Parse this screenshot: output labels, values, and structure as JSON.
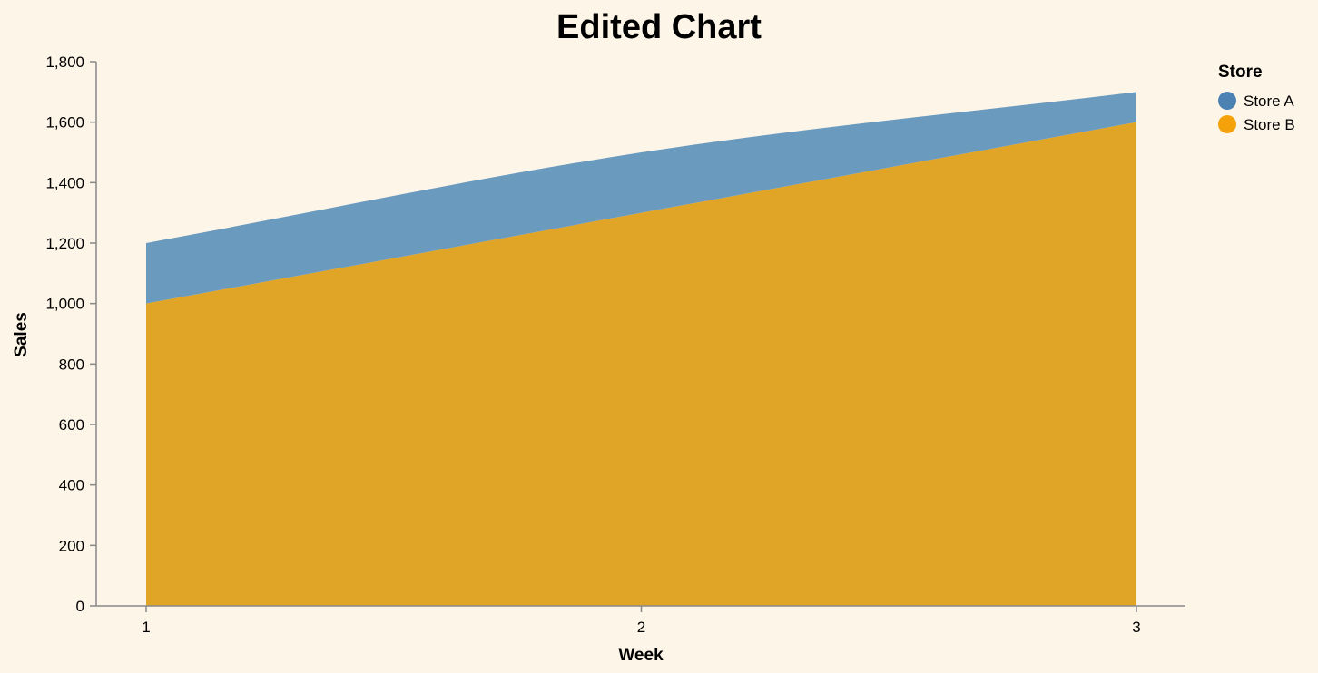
{
  "chart_data": {
    "type": "area",
    "stacked": true,
    "interpolation": "monotone",
    "title": "Edited Chart",
    "xlabel": "Week",
    "ylabel": "Sales",
    "x": [
      1,
      2,
      3
    ],
    "x_ticks": [
      "1",
      "2",
      "3"
    ],
    "ylim": [
      0,
      1800
    ],
    "y_ticks": [
      "0",
      "200",
      "400",
      "600",
      "800",
      "1,000",
      "1,200",
      "1,400",
      "1,600",
      "1,800"
    ],
    "y_tick_values": [
      0,
      200,
      400,
      600,
      800,
      1000,
      1200,
      1400,
      1600,
      1800
    ],
    "grid": false,
    "legend": {
      "title": "Store",
      "placement": "top-right"
    },
    "series": [
      {
        "name": "Store A",
        "values": [
          200,
          200,
          100
        ],
        "color": "#4c82b3",
        "fill": "#6b9abf"
      },
      {
        "name": "Store B",
        "values": [
          1000,
          1300,
          1600
        ],
        "color": "#f5a20a",
        "fill": "#e0a426"
      }
    ]
  }
}
